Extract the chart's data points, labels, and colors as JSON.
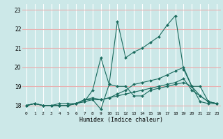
{
  "title": "",
  "xlabel": "Humidex (Indice chaleur)",
  "ylabel": "",
  "xlim": [
    -0.5,
    23.5
  ],
  "ylim": [
    17.7,
    23.3
  ],
  "yticks": [
    18,
    19,
    20,
    21,
    22,
    23
  ],
  "xticks": [
    0,
    1,
    2,
    3,
    4,
    5,
    6,
    7,
    8,
    9,
    10,
    11,
    12,
    13,
    14,
    15,
    16,
    17,
    18,
    19,
    20,
    21,
    22,
    23
  ],
  "bg_color": "#cce8e8",
  "line_color": "#1a6b5e",
  "vgrid_color": "#ffffff",
  "hgrid_color": "#e8b0b0",
  "lines": [
    [
      18.0,
      18.1,
      18.0,
      18.0,
      18.1,
      18.1,
      18.1,
      18.3,
      18.3,
      17.8,
      19.1,
      22.4,
      20.5,
      20.8,
      21.0,
      21.3,
      21.6,
      22.2,
      22.7,
      19.9,
      19.0,
      18.2,
      18.1,
      18.1
    ],
    [
      18.0,
      18.1,
      18.0,
      18.0,
      18.0,
      18.0,
      18.1,
      18.2,
      18.8,
      20.5,
      19.1,
      19.0,
      19.0,
      18.5,
      18.5,
      18.8,
      18.9,
      19.0,
      19.1,
      19.2,
      19.0,
      19.0,
      18.2,
      18.1
    ],
    [
      18.0,
      18.1,
      18.0,
      18.0,
      18.0,
      18.0,
      18.1,
      18.3,
      18.4,
      18.3,
      18.4,
      18.6,
      18.8,
      19.1,
      19.2,
      19.3,
      19.4,
      19.6,
      19.8,
      20.0,
      19.0,
      18.5,
      18.2,
      18.1
    ],
    [
      18.0,
      18.1,
      18.0,
      18.0,
      18.0,
      18.0,
      18.1,
      18.2,
      18.3,
      18.3,
      18.4,
      18.5,
      18.6,
      18.7,
      18.8,
      18.9,
      19.0,
      19.1,
      19.2,
      19.4,
      18.8,
      18.5,
      18.2,
      18.1
    ]
  ]
}
